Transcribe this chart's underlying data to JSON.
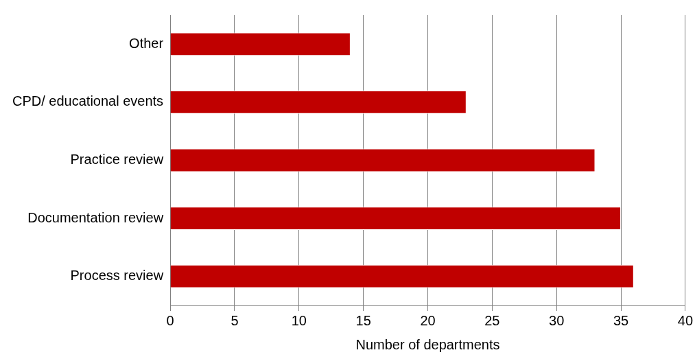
{
  "chart_data": {
    "type": "bar",
    "orientation": "horizontal",
    "xlabel": "Number of departments",
    "categories": [
      "Other",
      "CPD/ educational events",
      "Practice review",
      "Documentation review",
      "Process review"
    ],
    "values": [
      14,
      23,
      33,
      35,
      36
    ],
    "color": "#c00000",
    "xlim": [
      0,
      40
    ],
    "xticks": [
      0,
      5,
      10,
      15,
      20,
      25,
      30,
      35,
      40
    ],
    "grid": "x",
    "legend": false
  }
}
